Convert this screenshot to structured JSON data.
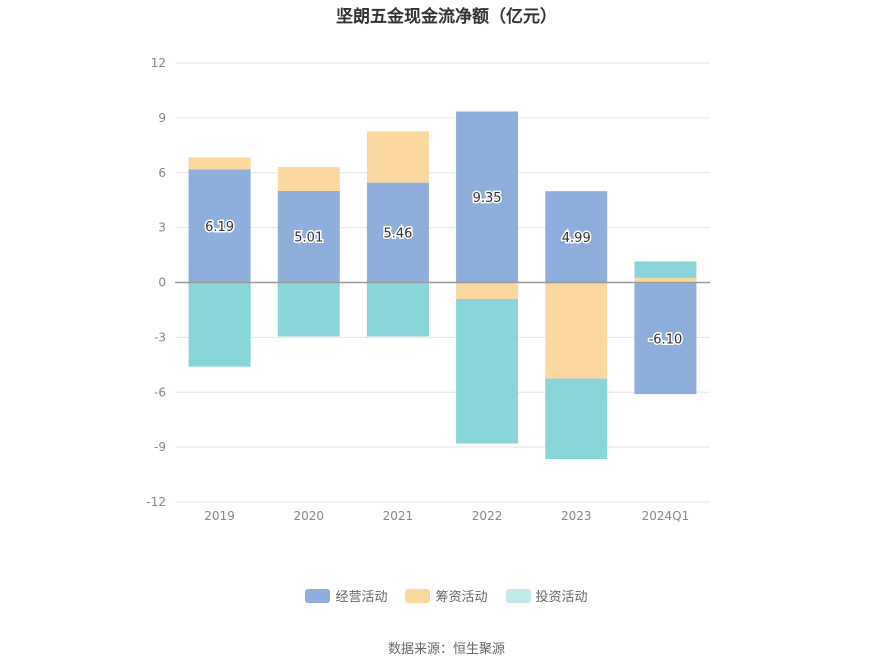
{
  "chart_data": {
    "type": "bar",
    "stacked": true,
    "title": "坚朗五金现金流净额（亿元）",
    "categories": [
      "2019",
      "2020",
      "2021",
      "2022",
      "2023",
      "2024Q1"
    ],
    "ylim": [
      -12,
      12
    ],
    "yticks": [
      12,
      9,
      6,
      3,
      0,
      -3,
      -6,
      -9,
      -12
    ],
    "grid": true,
    "legend_position": "bottom",
    "series": [
      {
        "name": "经营活动",
        "color": "#8eaedb",
        "values": [
          6.19,
          5.01,
          5.46,
          9.35,
          4.99,
          -6.1
        ],
        "labels": [
          "6.19",
          "5.01",
          "5.46",
          "9.35",
          "4.99",
          "-6.10"
        ]
      },
      {
        "name": "筹资活动",
        "color": "#fdd89e",
        "values": [
          0.65,
          1.3,
          2.8,
          -0.9,
          -5.25,
          0.25
        ]
      },
      {
        "name": "投资活动",
        "color": "#88d6da",
        "values": [
          -4.6,
          -2.95,
          -2.95,
          -7.9,
          -4.4,
          0.9
        ]
      }
    ]
  },
  "source": "数据来源：恒生聚源"
}
